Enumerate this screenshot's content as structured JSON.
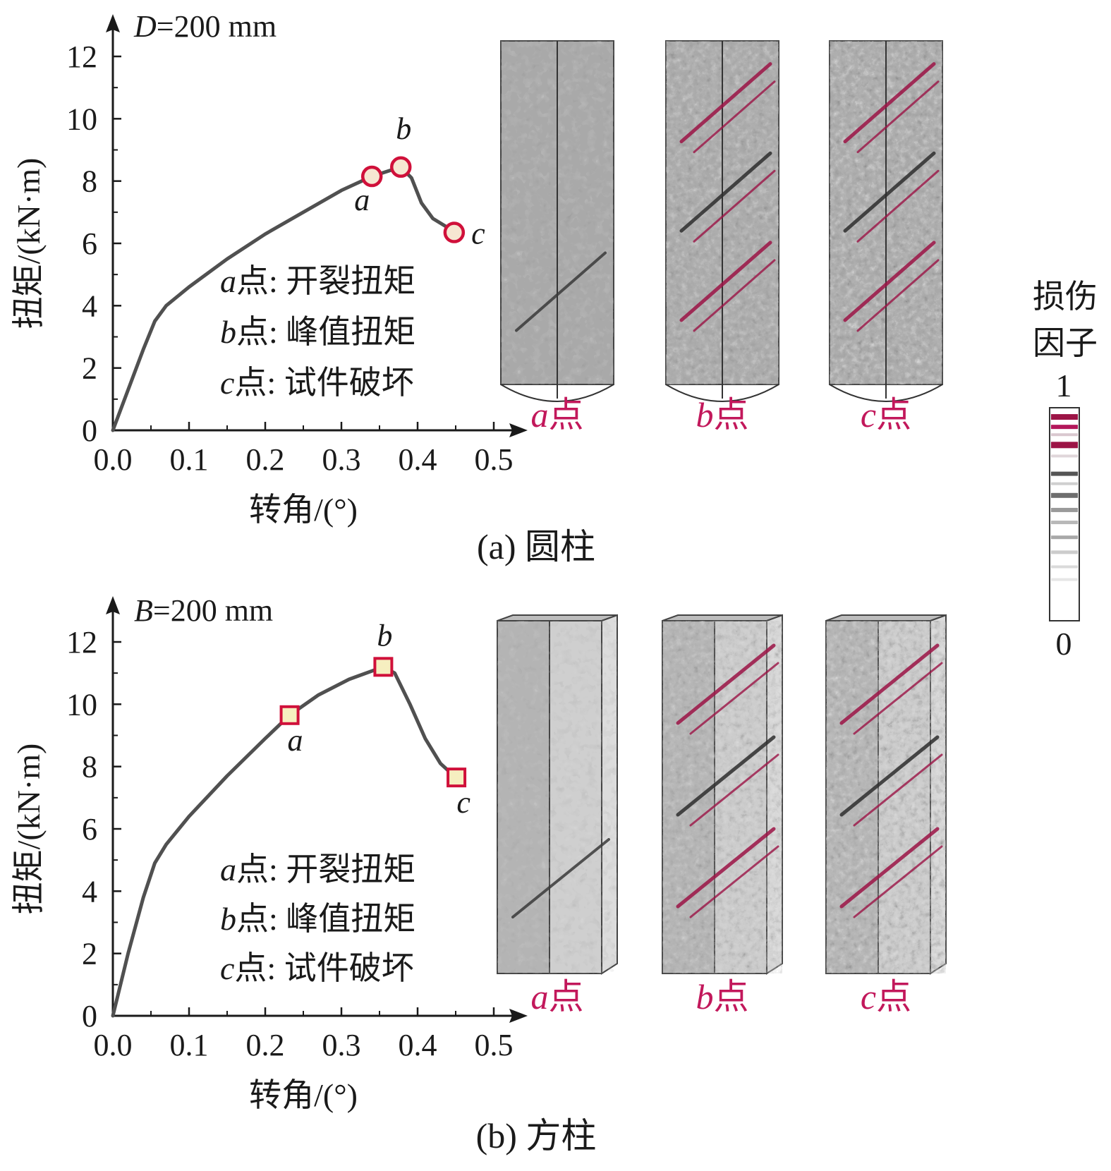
{
  "chart_data": [
    {
      "type": "line",
      "panel": "a",
      "caption": "(a) 圆柱",
      "dimension_label": "D=200 mm",
      "xlabel": "转角/(°)",
      "ylabel": "扭矩/(kN·m)",
      "xlim": [
        0,
        0.5
      ],
      "ylim": [
        0,
        12
      ],
      "xticks": [
        "0.0",
        "0.1",
        "0.2",
        "0.3",
        "0.4",
        "0.5"
      ],
      "yticks": [
        "0",
        "2",
        "4",
        "6",
        "8",
        "10",
        "12"
      ],
      "marker": "circle",
      "curve": {
        "x": [
          0,
          0.02,
          0.04,
          0.055,
          0.07,
          0.1,
          0.15,
          0.2,
          0.25,
          0.3,
          0.34,
          0.365,
          0.378,
          0.392,
          0.405,
          0.42,
          0.44,
          0.448
        ],
        "y": [
          0,
          1.3,
          2.6,
          3.5,
          4.0,
          4.6,
          5.5,
          6.3,
          7.0,
          7.7,
          8.15,
          8.35,
          8.45,
          8.1,
          7.3,
          6.8,
          6.5,
          6.3
        ]
      },
      "points": [
        {
          "label": "a",
          "x": 0.34,
          "y": 8.15
        },
        {
          "label": "b",
          "x": 0.378,
          "y": 8.45
        },
        {
          "label": "c",
          "x": 0.448,
          "y": 6.35
        }
      ],
      "legend": [
        {
          "key": "a",
          "text": "点: 开裂扭矩"
        },
        {
          "key": "b",
          "text": "点: 峰值扭矩"
        },
        {
          "key": "c",
          "text": "点: 试件破坏"
        }
      ],
      "simulations": [
        {
          "key": "a",
          "suffix": "点"
        },
        {
          "key": "b",
          "suffix": "点"
        },
        {
          "key": "c",
          "suffix": "点"
        }
      ]
    },
    {
      "type": "line",
      "panel": "b",
      "caption": "(b) 方柱",
      "dimension_label": "B=200 mm",
      "xlabel": "转角/(°)",
      "ylabel": "扭矩/(kN·m)",
      "xlim": [
        0,
        0.5
      ],
      "ylim": [
        0,
        12
      ],
      "xticks": [
        "0.0",
        "0.1",
        "0.2",
        "0.3",
        "0.4",
        "0.5"
      ],
      "yticks": [
        "0",
        "2",
        "4",
        "6",
        "8",
        "10",
        "12"
      ],
      "marker": "square",
      "curve": {
        "x": [
          0,
          0.02,
          0.04,
          0.055,
          0.07,
          0.1,
          0.15,
          0.2,
          0.232,
          0.27,
          0.31,
          0.355,
          0.37,
          0.39,
          0.41,
          0.43,
          0.45
        ],
        "y": [
          0,
          2.0,
          3.8,
          4.9,
          5.5,
          6.4,
          7.7,
          8.9,
          9.65,
          10.3,
          10.8,
          11.2,
          11.0,
          10.0,
          8.9,
          8.1,
          7.65
        ]
      },
      "points": [
        {
          "label": "a",
          "x": 0.232,
          "y": 9.65
        },
        {
          "label": "b",
          "x": 0.355,
          "y": 11.2
        },
        {
          "label": "c",
          "x": 0.451,
          "y": 7.65
        }
      ],
      "legend": [
        {
          "key": "a",
          "text": "点: 开裂扭矩"
        },
        {
          "key": "b",
          "text": "点: 峰值扭矩"
        },
        {
          "key": "c",
          "text": "点: 试件破坏"
        }
      ],
      "simulations": [
        {
          "key": "a",
          "suffix": "点"
        },
        {
          "key": "b",
          "suffix": "点"
        },
        {
          "key": "c",
          "suffix": "点"
        }
      ]
    }
  ],
  "colorbar": {
    "title_line1": "损伤",
    "title_line2": "因子",
    "max_label": "1",
    "min_label": "0"
  },
  "colors": {
    "curve": "#505050",
    "marker_edge": "#d0103a",
    "circle_fill": "#f6e7d2",
    "square_fill": "#f6efc0",
    "accent_label": "#c2185b",
    "damage_high": "#9c1446"
  }
}
